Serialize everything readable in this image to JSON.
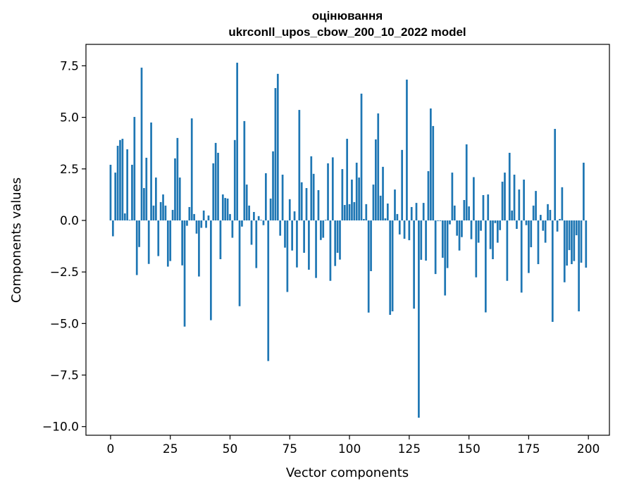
{
  "chart_data": {
    "type": "bar",
    "title": [
      "оцінювання",
      "ukrconll_upos_cbow_200_10_2022 model"
    ],
    "xlabel": "Vector components",
    "ylabel": "Components values",
    "xlim": [
      -10.3,
      208.8
    ],
    "ylim": [
      -10.42,
      8.54
    ],
    "xticks": [
      0,
      25,
      50,
      75,
      100,
      125,
      150,
      175,
      200
    ],
    "xtick_labels": [
      "0",
      "25",
      "50",
      "75",
      "100",
      "125",
      "150",
      "175",
      "200"
    ],
    "yticks": [
      7.5,
      5.0,
      2.5,
      0.0,
      -2.5,
      -5.0,
      -7.5,
      -10.0
    ],
    "ytick_labels": [
      "7.5",
      "5.0",
      "2.5",
      "0.0",
      "−2.5",
      "−5.0",
      "−7.5",
      "−10.0"
    ],
    "grid": false,
    "color": "#1f77b4",
    "values": [
      2.7,
      -0.77,
      2.32,
      3.62,
      3.9,
      3.96,
      0.34,
      3.45,
      0.03,
      2.7,
      5.02,
      -2.65,
      -1.29,
      7.41,
      1.57,
      3.04,
      -2.11,
      4.75,
      0.72,
      2.08,
      -1.73,
      0.89,
      1.26,
      0.72,
      -2.24,
      -1.97,
      0.51,
      3.01,
      4.0,
      2.08,
      -2.18,
      -5.15,
      -0.26,
      0.65,
      4.95,
      0.31,
      -0.64,
      -2.72,
      -0.36,
      0.48,
      -0.36,
      0.24,
      -4.84,
      2.77,
      3.76,
      3.28,
      -1.88,
      1.26,
      1.09,
      1.06,
      0.31,
      -0.84,
      3.9,
      7.65,
      -4.16,
      -0.3,
      4.82,
      1.74,
      0.72,
      -1.18,
      0.41,
      -2.31,
      0.21,
      0.03,
      -0.23,
      2.29,
      -6.82,
      1.06,
      3.35,
      6.42,
      7.11,
      -0.74,
      2.22,
      -1.32,
      -3.47,
      1.03,
      -1.46,
      0.44,
      -2.28,
      5.36,
      1.85,
      -1.57,
      1.57,
      -2.39,
      3.11,
      2.26,
      -2.79,
      1.47,
      -0.95,
      -0.84,
      0.03,
      2.77,
      -2.93,
      3.06,
      -2.21,
      -1.57,
      -1.9,
      2.49,
      0.75,
      3.96,
      0.79,
      1.98,
      0.89,
      2.8,
      2.08,
      6.15,
      0.07,
      0.79,
      -4.47,
      -2.46,
      1.74,
      3.93,
      5.19,
      1.2,
      2.6,
      0.1,
      0.82,
      -4.58,
      -4.41,
      1.5,
      0.31,
      -0.68,
      3.42,
      -0.89,
      6.83,
      -0.96,
      0.65,
      -4.28,
      0.85,
      -9.57,
      -1.91,
      0.85,
      -1.95,
      2.39,
      5.43,
      4.58,
      -2.6,
      -0.03,
      -0.03,
      -1.81,
      -3.64,
      -2.31,
      -0.19,
      2.32,
      0.72,
      -0.74,
      -1.46,
      -0.81,
      0.99,
      3.69,
      0.68,
      -0.91,
      2.1,
      -2.76,
      -1.08,
      -0.5,
      1.23,
      -4.46,
      1.26,
      -1.39,
      -1.88,
      -0.13,
      -1.08,
      -0.47,
      1.88,
      2.32,
      -2.93,
      3.28,
      0.48,
      2.22,
      -0.41,
      1.5,
      -3.5,
      1.98,
      -0.23,
      -2.55,
      -1.3,
      0.72,
      1.43,
      -2.12,
      0.27,
      -0.5,
      -1.08,
      0.79,
      0.51,
      -4.92,
      4.44,
      -0.54,
      0.07,
      1.61,
      -3.0,
      -2.19,
      -1.44,
      -2.12,
      -1.97,
      -0.72,
      -4.41,
      -2.05,
      2.8,
      -2.29
    ]
  }
}
